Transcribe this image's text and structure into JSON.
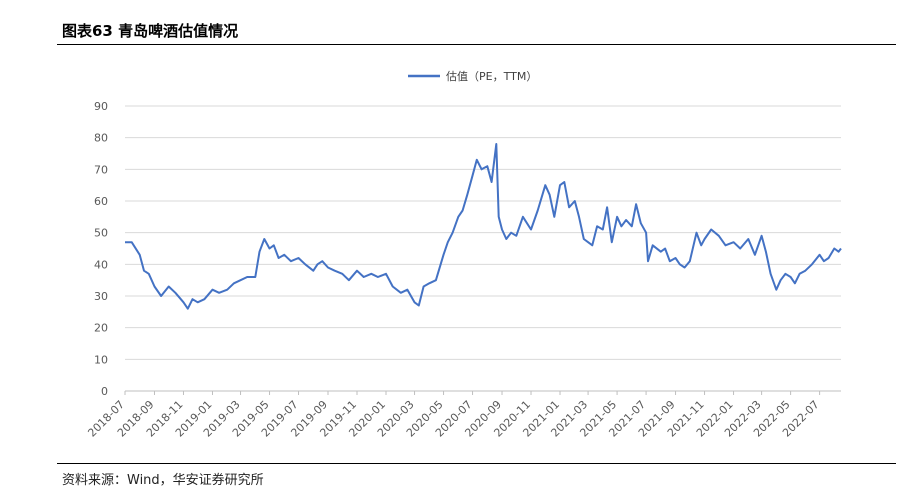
{
  "figure": {
    "title": "图表63 青岛啤酒估值情况",
    "source": "资料来源：Wind，华安证券研究所"
  },
  "chart_data": {
    "type": "line",
    "title": "",
    "xlabel": "",
    "ylabel": "",
    "ylim": [
      0,
      90
    ],
    "yticks": [
      0,
      10,
      20,
      30,
      40,
      50,
      60,
      70,
      80,
      90
    ],
    "grid": true,
    "legend_position": "top-center",
    "color": "#4472C4",
    "xtick_labels": [
      "2018-07",
      "2018-09",
      "2018-11",
      "2019-01",
      "2019-03",
      "2019-05",
      "2019-07",
      "2019-09",
      "2019-11",
      "2020-01",
      "2020-03",
      "2020-05",
      "2020-07",
      "2020-09",
      "2020-11",
      "2021-01",
      "2021-03",
      "2021-05",
      "2021-07",
      "2021-09",
      "2021-11",
      "2022-01",
      "2022-03",
      "2022-05",
      "2022-07"
    ],
    "series": [
      {
        "name": "估值（PE，TTM）",
        "points": [
          [
            "2018-07-01",
            47
          ],
          [
            "2018-07-15",
            47
          ],
          [
            "2018-08-01",
            43
          ],
          [
            "2018-08-10",
            38
          ],
          [
            "2018-08-20",
            37
          ],
          [
            "2018-09-01",
            33
          ],
          [
            "2018-09-15",
            30
          ],
          [
            "2018-10-01",
            33
          ],
          [
            "2018-10-15",
            31
          ],
          [
            "2018-11-01",
            28
          ],
          [
            "2018-11-10",
            26
          ],
          [
            "2018-11-20",
            29
          ],
          [
            "2018-12-01",
            28
          ],
          [
            "2018-12-15",
            29
          ],
          [
            "2019-01-01",
            32
          ],
          [
            "2019-01-15",
            31
          ],
          [
            "2019-02-01",
            32
          ],
          [
            "2019-02-15",
            34
          ],
          [
            "2019-03-01",
            35
          ],
          [
            "2019-03-15",
            36
          ],
          [
            "2019-04-01",
            36
          ],
          [
            "2019-04-10",
            44
          ],
          [
            "2019-04-20",
            48
          ],
          [
            "2019-05-01",
            45
          ],
          [
            "2019-05-10",
            46
          ],
          [
            "2019-05-20",
            42
          ],
          [
            "2019-06-01",
            43
          ],
          [
            "2019-06-15",
            41
          ],
          [
            "2019-07-01",
            42
          ],
          [
            "2019-07-15",
            40
          ],
          [
            "2019-08-01",
            38
          ],
          [
            "2019-08-10",
            40
          ],
          [
            "2019-08-20",
            41
          ],
          [
            "2019-09-01",
            39
          ],
          [
            "2019-09-15",
            38
          ],
          [
            "2019-10-01",
            37
          ],
          [
            "2019-10-15",
            35
          ],
          [
            "2019-11-01",
            38
          ],
          [
            "2019-11-15",
            36
          ],
          [
            "2019-12-01",
            37
          ],
          [
            "2019-12-15",
            36
          ],
          [
            "2020-01-01",
            37
          ],
          [
            "2020-01-15",
            33
          ],
          [
            "2020-02-01",
            31
          ],
          [
            "2020-02-15",
            32
          ],
          [
            "2020-03-01",
            28
          ],
          [
            "2020-03-10",
            27
          ],
          [
            "2020-03-20",
            33
          ],
          [
            "2020-04-01",
            34
          ],
          [
            "2020-04-15",
            35
          ],
          [
            "2020-05-01",
            43
          ],
          [
            "2020-05-10",
            47
          ],
          [
            "2020-05-20",
            50
          ],
          [
            "2020-06-01",
            55
          ],
          [
            "2020-06-10",
            57
          ],
          [
            "2020-06-20",
            62
          ],
          [
            "2020-07-01",
            68
          ],
          [
            "2020-07-10",
            73
          ],
          [
            "2020-07-20",
            70
          ],
          [
            "2020-08-01",
            71
          ],
          [
            "2020-08-10",
            66
          ],
          [
            "2020-08-20",
            78
          ],
          [
            "2020-08-25",
            55
          ],
          [
            "2020-09-01",
            51
          ],
          [
            "2020-09-10",
            48
          ],
          [
            "2020-09-20",
            50
          ],
          [
            "2020-10-01",
            49
          ],
          [
            "2020-10-15",
            55
          ],
          [
            "2020-11-01",
            51
          ],
          [
            "2020-11-15",
            57
          ],
          [
            "2020-12-01",
            65
          ],
          [
            "2020-12-10",
            62
          ],
          [
            "2020-12-20",
            55
          ],
          [
            "2021-01-01",
            65
          ],
          [
            "2021-01-10",
            66
          ],
          [
            "2021-01-20",
            58
          ],
          [
            "2021-02-01",
            60
          ],
          [
            "2021-02-10",
            55
          ],
          [
            "2021-02-20",
            48
          ],
          [
            "2021-03-01",
            47
          ],
          [
            "2021-03-10",
            46
          ],
          [
            "2021-03-20",
            52
          ],
          [
            "2021-04-01",
            51
          ],
          [
            "2021-04-10",
            58
          ],
          [
            "2021-04-20",
            47
          ],
          [
            "2021-05-01",
            55
          ],
          [
            "2021-05-10",
            52
          ],
          [
            "2021-05-20",
            54
          ],
          [
            "2021-06-01",
            52
          ],
          [
            "2021-06-10",
            59
          ],
          [
            "2021-06-20",
            53
          ],
          [
            "2021-07-01",
            50
          ],
          [
            "2021-07-05",
            41
          ],
          [
            "2021-07-15",
            46
          ],
          [
            "2021-08-01",
            44
          ],
          [
            "2021-08-10",
            45
          ],
          [
            "2021-08-20",
            41
          ],
          [
            "2021-09-01",
            42
          ],
          [
            "2021-09-10",
            40
          ],
          [
            "2021-09-20",
            39
          ],
          [
            "2021-10-01",
            41
          ],
          [
            "2021-10-15",
            50
          ],
          [
            "2021-10-25",
            46
          ],
          [
            "2021-11-01",
            48
          ],
          [
            "2021-11-15",
            51
          ],
          [
            "2021-12-01",
            49
          ],
          [
            "2021-12-15",
            46
          ],
          [
            "2022-01-01",
            47
          ],
          [
            "2022-01-15",
            45
          ],
          [
            "2022-02-01",
            48
          ],
          [
            "2022-02-15",
            43
          ],
          [
            "2022-03-01",
            49
          ],
          [
            "2022-03-10",
            44
          ],
          [
            "2022-03-20",
            37
          ],
          [
            "2022-04-01",
            32
          ],
          [
            "2022-04-10",
            35
          ],
          [
            "2022-04-20",
            37
          ],
          [
            "2022-05-01",
            36
          ],
          [
            "2022-05-10",
            34
          ],
          [
            "2022-05-20",
            37
          ],
          [
            "2022-06-01",
            38
          ],
          [
            "2022-06-15",
            40
          ],
          [
            "2022-07-01",
            43
          ],
          [
            "2022-07-10",
            41
          ],
          [
            "2022-07-20",
            42
          ],
          [
            "2022-08-01",
            45
          ],
          [
            "2022-08-10",
            44
          ],
          [
            "2022-08-15",
            45
          ]
        ]
      }
    ]
  }
}
